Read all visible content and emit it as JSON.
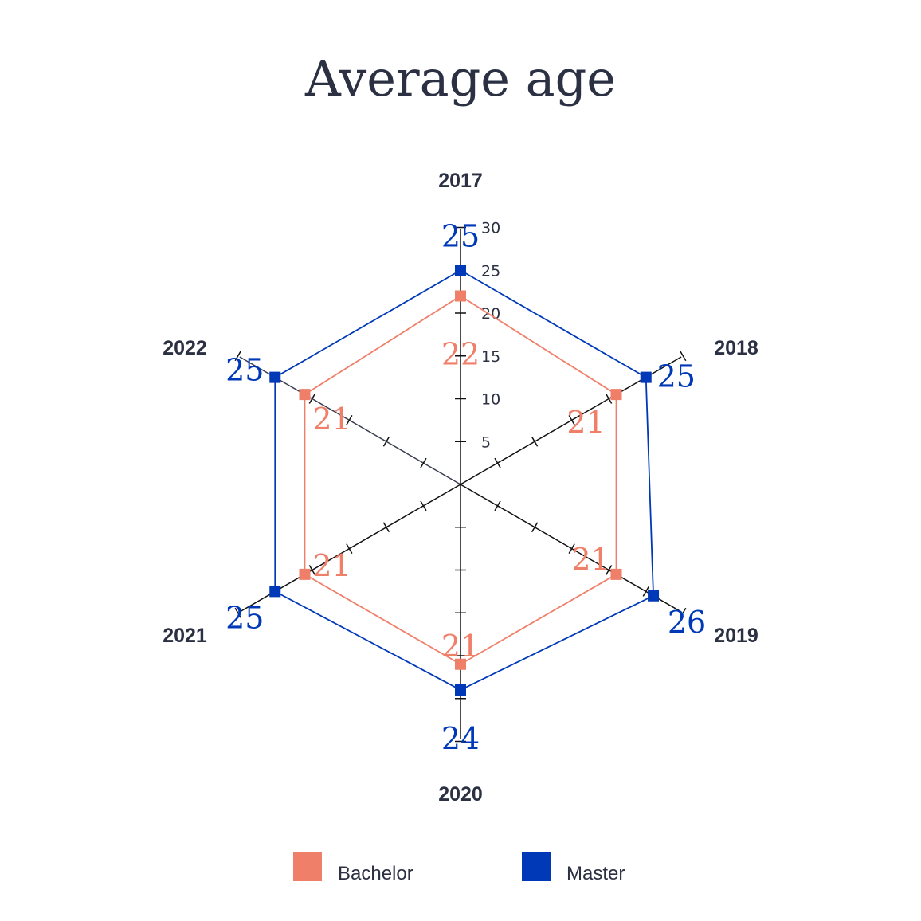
{
  "chart_data": {
    "type": "radar",
    "title": "Average age",
    "categories": [
      "2017",
      "2018",
      "2019",
      "2020",
      "2021",
      "2022"
    ],
    "radial_ticks": [
      5,
      10,
      15,
      20,
      25,
      30
    ],
    "radial_range": [
      0,
      30
    ],
    "series": [
      {
        "name": "Bachelor",
        "values": [
          22,
          21,
          21,
          21,
          21,
          21
        ],
        "labels": [
          "22",
          "21",
          "21",
          "21",
          "21",
          "21"
        ],
        "color": "#f07f69"
      },
      {
        "name": "Master",
        "values": [
          25,
          25,
          26,
          24,
          25,
          25
        ],
        "labels": [
          "25",
          "25",
          "26",
          "24",
          "25",
          "25"
        ],
        "color": "#0039b8"
      }
    ],
    "legend_position": "bottom"
  }
}
